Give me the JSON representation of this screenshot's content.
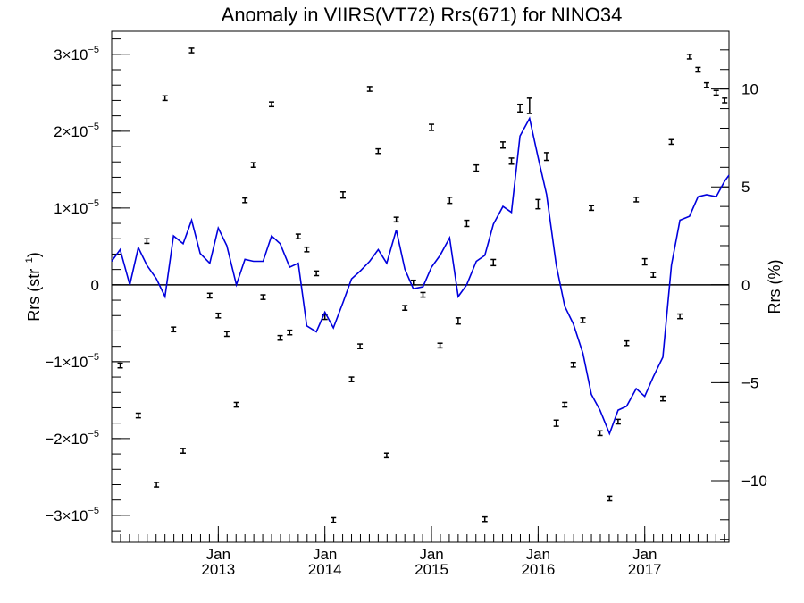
{
  "chart_data": {
    "type": "line",
    "title": "Anomaly in VIIRS(VT72) Rrs(671) for NINO34",
    "ylabel": "Rrs (str",
    "ylabel_sup": "−1",
    "ylabel_close": ")",
    "y2label": "Rrs (%)",
    "ylim": [
      -3.35e-05,
      3.3e-05
    ],
    "y2lim": [
      -13.15,
      12.95
    ],
    "xlim": [
      2012.0,
      2017.79
    ],
    "grid": false,
    "y_ticks": [
      {
        "v": 3e-05,
        "label": "3×10",
        "exp": "−5"
      },
      {
        "v": 2e-05,
        "label": "2×10",
        "exp": "−5"
      },
      {
        "v": 1e-05,
        "label": "1×10",
        "exp": "−5"
      },
      {
        "v": 0,
        "label": "0",
        "exp": ""
      },
      {
        "v": -1e-05,
        "label": "−1×10",
        "exp": "−5"
      },
      {
        "v": -2e-05,
        "label": "−2×10",
        "exp": "−5"
      },
      {
        "v": -3e-05,
        "label": "−3×10",
        "exp": "−5"
      }
    ],
    "y2_ticks": [
      {
        "v": 10,
        "label": "10"
      },
      {
        "v": 5,
        "label": "5"
      },
      {
        "v": 0,
        "label": "0"
      },
      {
        "v": -5,
        "label": "−5"
      },
      {
        "v": -10,
        "label": "−10"
      }
    ],
    "x_ticks": [
      {
        "v": 2013.0,
        "month": "Jan",
        "year": "2013"
      },
      {
        "v": 2014.0,
        "month": "Jan",
        "year": "2014"
      },
      {
        "v": 2015.0,
        "month": "Jan",
        "year": "2015"
      },
      {
        "v": 2016.0,
        "month": "Jan",
        "year": "2016"
      },
      {
        "v": 2017.0,
        "month": "Jan",
        "year": "2017"
      }
    ],
    "line_color": "#0000dd",
    "series": [
      {
        "kind": "line",
        "axis": "right",
        "x": [
          2012.0,
          2012.08,
          2012.17,
          2012.25,
          2012.33,
          2012.42,
          2012.5,
          2012.58,
          2012.67,
          2012.75,
          2012.83,
          2012.92,
          2013.0,
          2013.08,
          2013.17,
          2013.25,
          2013.33,
          2013.42,
          2013.5,
          2013.58,
          2013.67,
          2013.75,
          2013.83,
          2013.92,
          2014.0,
          2014.08,
          2014.17,
          2014.25,
          2014.33,
          2014.42,
          2014.5,
          2014.58,
          2014.67,
          2014.75,
          2014.83,
          2014.92,
          2015.0,
          2015.08,
          2015.17,
          2015.25,
          2015.33,
          2015.42,
          2015.5,
          2015.58,
          2015.67,
          2015.75,
          2015.83,
          2015.92,
          2016.0,
          2016.08,
          2016.17,
          2016.25,
          2016.33,
          2016.42,
          2016.5,
          2016.58,
          2016.67,
          2016.75,
          2016.83,
          2016.92,
          2017.0,
          2017.08,
          2017.17,
          2017.25,
          2017.33,
          2017.42,
          2017.5,
          2017.58,
          2017.67,
          2017.75,
          2017.79
        ],
        "y": [
          1.2,
          1.8,
          0.0,
          1.9,
          1.0,
          0.3,
          -0.6,
          2.5,
          2.1,
          3.3,
          1.6,
          1.1,
          2.9,
          2.0,
          0.0,
          1.3,
          1.2,
          1.2,
          2.5,
          2.1,
          0.9,
          1.1,
          -2.1,
          -2.4,
          -1.4,
          -2.2,
          -0.9,
          0.3,
          0.7,
          1.2,
          1.8,
          1.1,
          2.8,
          0.8,
          -0.2,
          -0.1,
          0.9,
          1.5,
          2.4,
          -0.6,
          0.0,
          1.2,
          1.5,
          3.1,
          4.0,
          3.7,
          7.6,
          8.5,
          6.5,
          4.6,
          1.0,
          -1.1,
          -2.0,
          -3.5,
          -5.6,
          -6.4,
          -7.6,
          -6.4,
          -6.2,
          -5.3,
          -5.7,
          -4.7,
          -3.7,
          1.0,
          3.3,
          3.5,
          4.5,
          4.6,
          4.5,
          5.3,
          5.6
        ]
      },
      {
        "kind": "errorbar",
        "axis": "left",
        "x": [
          2012.08,
          2012.25,
          2012.33,
          2012.42,
          2012.5,
          2012.58,
          2012.67,
          2012.75,
          2012.92,
          2013.0,
          2013.08,
          2013.17,
          2013.25,
          2013.33,
          2013.42,
          2013.5,
          2013.58,
          2013.67,
          2013.75,
          2013.83,
          2013.92,
          2014.0,
          2014.08,
          2014.17,
          2014.25,
          2014.33,
          2014.42,
          2014.5,
          2014.58,
          2014.67,
          2014.75,
          2014.83,
          2014.92,
          2015.0,
          2015.08,
          2015.17,
          2015.25,
          2015.33,
          2015.42,
          2015.5,
          2015.58,
          2015.67,
          2015.75,
          2015.83,
          2015.92,
          2016.0,
          2016.08,
          2016.17,
          2016.25,
          2016.33,
          2016.42,
          2016.5,
          2016.58,
          2016.67,
          2016.75,
          2016.83,
          2016.92,
          2017.0,
          2017.08,
          2017.17,
          2017.25,
          2017.33,
          2017.42,
          2017.5,
          2017.58,
          2017.67,
          2017.75
        ],
        "y": [
          -1.05e-05,
          -1.7e-05,
          5.7e-06,
          -2.6e-05,
          2.43e-05,
          -5.8e-06,
          -2.16e-05,
          3.05e-05,
          -1.4e-06,
          -4e-06,
          -6.4e-06,
          -1.56e-05,
          1.1e-05,
          1.56e-05,
          -1.6e-06,
          2.35e-05,
          -6.9e-06,
          -6.2e-06,
          6.3e-06,
          4.6e-06,
          1.5e-06,
          -4.2e-06,
          -3.06e-05,
          1.17e-05,
          -1.23e-05,
          -8e-06,
          2.55e-05,
          1.74e-05,
          -2.22e-05,
          8.5e-06,
          -3e-06,
          3e-07,
          -1.3e-06,
          2.05e-05,
          -7.9e-06,
          1.1e-05,
          -4.7e-06,
          8e-06,
          1.52e-05,
          -3.05e-05,
          2.9e-06,
          1.82e-05,
          1.61e-05,
          2.3e-05,
          2.33e-05,
          1.05e-05,
          1.67e-05,
          -1.8e-05,
          -1.56e-05,
          -1.04e-05,
          -4.6e-06,
          1e-05,
          -1.93e-05,
          -2.78e-05,
          -1.78e-05,
          -7.6e-06,
          1.11e-05,
          3e-06,
          1.3e-06,
          -1.48e-05,
          1.86e-05,
          -4.1e-06,
          2.97e-05,
          2.8e-05,
          2.6e-05,
          2.5e-05,
          2.4e-05
        ],
        "err": [
          3e-07,
          3e-07,
          3e-07,
          3e-07,
          3e-07,
          3e-07,
          3e-07,
          3e-07,
          3e-07,
          3e-07,
          3e-07,
          3e-07,
          3e-07,
          3e-07,
          3e-07,
          3e-07,
          3e-07,
          3e-07,
          3e-07,
          3e-07,
          3e-07,
          3e-07,
          3e-07,
          4e-07,
          3e-07,
          3e-07,
          3e-07,
          3e-07,
          3e-07,
          3e-07,
          3e-07,
          3e-07,
          3e-07,
          4e-07,
          3e-07,
          4e-07,
          4e-07,
          4e-07,
          4e-07,
          3e-07,
          4e-07,
          4e-07,
          4e-07,
          5e-07,
          1e-06,
          6e-07,
          5e-07,
          4e-07,
          3e-07,
          3e-07,
          3e-07,
          3e-07,
          3e-07,
          3e-07,
          3e-07,
          3e-07,
          3e-07,
          4e-07,
          3e-07,
          3e-07,
          3e-07,
          3e-07,
          3e-07,
          3e-07,
          3e-07,
          3e-07,
          3e-07
        ]
      }
    ]
  }
}
